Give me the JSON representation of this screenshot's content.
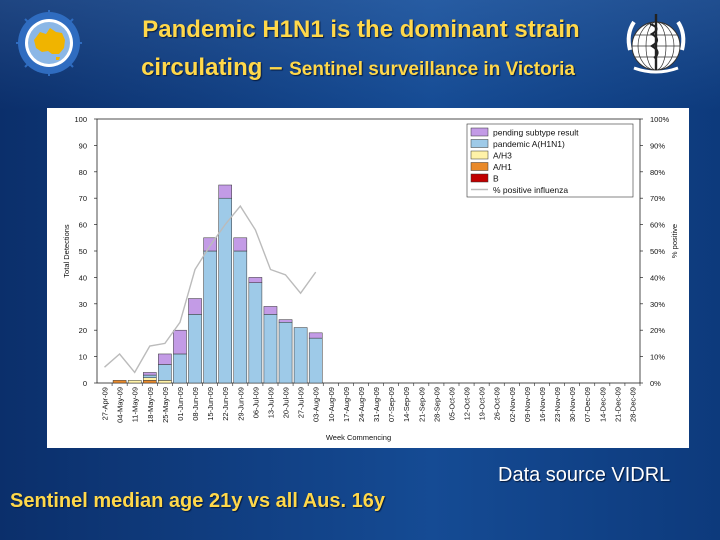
{
  "slide": {
    "title_line1": "Pandemic H1N1 is the dominant strain",
    "title_line2_part1": "circulating – ",
    "title_line2_part2": "Sentinel surveillance in Victoria",
    "source_note": "Data source VIDRL",
    "footer_note": "Sentinel median age 21y vs all Aus. 16y",
    "logo_left": "australian-surveillance-logo",
    "logo_right": "who-emblem",
    "colors": {
      "background": "#0f3f83",
      "title": "#ffd84a",
      "text": "#ffffff"
    }
  },
  "chart_data": {
    "type": "bar",
    "stacked": true,
    "title": "",
    "xlabel": "Week Commencing",
    "ylabel": "Total Detections",
    "ylabel_right": "% positive",
    "ylim": [
      0,
      100
    ],
    "yticks": [
      "0",
      "10",
      "20",
      "30",
      "40",
      "50",
      "60",
      "70",
      "80",
      "90",
      "100"
    ],
    "y2lim": [
      0,
      100
    ],
    "y2ticks": [
      "0%",
      "10%",
      "20%",
      "30%",
      "40%",
      "50%",
      "60%",
      "70%",
      "80%",
      "90%",
      "100%"
    ],
    "legend_position": "top-right",
    "grid": false,
    "categories": [
      "27-Apr-09",
      "04-May-09",
      "11-May-09",
      "18-May-09",
      "25-May-09",
      "01-Jun-09",
      "08-Jun-09",
      "15-Jun-09",
      "22-Jun-09",
      "29-Jun-09",
      "06-Jul-09",
      "13-Jul-09",
      "20-Jul-09",
      "27-Jul-09",
      "03-Aug-09",
      "10-Aug-09",
      "17-Aug-09",
      "24-Aug-09",
      "31-Aug-09",
      "07-Sep-09",
      "14-Sep-09",
      "21-Sep-09",
      "28-Sep-09",
      "05-Oct-09",
      "12-Oct-09",
      "19-Oct-09",
      "26-Oct-09",
      "02-Nov-09",
      "09-Nov-09",
      "16-Nov-09",
      "23-Nov-09",
      "30-Nov-09",
      "07-Dec-09",
      "14-Dec-09",
      "21-Dec-09",
      "28-Dec-09"
    ],
    "series": [
      {
        "name": "B",
        "color": "#c00000",
        "values": [
          0,
          0,
          0,
          0,
          0,
          0,
          0,
          0,
          0,
          0,
          0,
          0,
          0,
          0,
          0,
          0,
          0,
          0,
          0,
          0,
          0,
          0,
          0,
          0,
          0,
          0,
          0,
          0,
          0,
          0,
          0,
          0,
          0,
          0,
          0,
          0
        ]
      },
      {
        "name": "A/H1",
        "color": "#e98a2b",
        "values": [
          0,
          1,
          0,
          1,
          0,
          0,
          0,
          0,
          0,
          0,
          0,
          0,
          0,
          0,
          0,
          0,
          0,
          0,
          0,
          0,
          0,
          0,
          0,
          0,
          0,
          0,
          0,
          0,
          0,
          0,
          0,
          0,
          0,
          0,
          0,
          0
        ]
      },
      {
        "name": "A/H3",
        "color": "#fff2a8",
        "values": [
          0,
          0,
          1,
          1,
          1,
          0,
          0,
          0,
          0,
          0,
          0,
          0,
          0,
          0,
          0,
          0,
          0,
          0,
          0,
          0,
          0,
          0,
          0,
          0,
          0,
          0,
          0,
          0,
          0,
          0,
          0,
          0,
          0,
          0,
          0,
          0
        ]
      },
      {
        "name": "pandemic A(H1N1)",
        "color": "#9ecae8",
        "values": [
          0,
          0,
          0,
          1,
          6,
          11,
          26,
          50,
          70,
          50,
          38,
          26,
          23,
          21,
          17,
          0,
          0,
          0,
          0,
          0,
          0,
          0,
          0,
          0,
          0,
          0,
          0,
          0,
          0,
          0,
          0,
          0,
          0,
          0,
          0,
          0
        ]
      },
      {
        "name": "pending subtype result",
        "color": "#c39be6",
        "values": [
          0,
          0,
          0,
          1,
          4,
          9,
          6,
          5,
          5,
          5,
          2,
          3,
          1,
          0,
          2,
          0,
          0,
          0,
          0,
          0,
          0,
          0,
          0,
          0,
          0,
          0,
          0,
          0,
          0,
          0,
          0,
          0,
          0,
          0,
          0,
          0
        ]
      }
    ],
    "line": {
      "name": "% positive influenza",
      "color": "#bbbbbb",
      "values": [
        6,
        11,
        4,
        14,
        15,
        23,
        43,
        52,
        60,
        67,
        58,
        43,
        41,
        34,
        42
      ]
    }
  }
}
